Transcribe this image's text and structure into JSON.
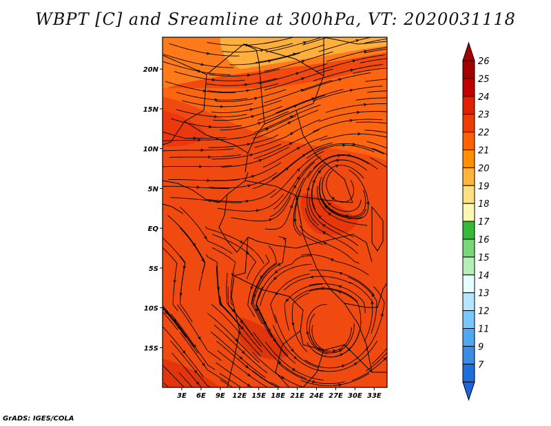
{
  "title": "WBPT [C] and Sreamline at 300hPa, VT: 2020031118",
  "footer": "GrADS: IGES/COLA",
  "map": {
    "lon_range": [
      0,
      35
    ],
    "lat_range": [
      -20,
      24
    ],
    "lat_ticks": [
      {
        "value": 20,
        "label": "20N"
      },
      {
        "value": 15,
        "label": "15N"
      },
      {
        "value": 10,
        "label": "10N"
      },
      {
        "value": 5,
        "label": "5N"
      },
      {
        "value": 0,
        "label": "EQ"
      },
      {
        "value": -5,
        "label": "5S"
      },
      {
        "value": -10,
        "label": "10S"
      },
      {
        "value": -15,
        "label": "15S"
      }
    ],
    "lon_ticks": [
      {
        "value": 3,
        "label": "3E"
      },
      {
        "value": 6,
        "label": "6E"
      },
      {
        "value": 9,
        "label": "9E"
      },
      {
        "value": 12,
        "label": "12E"
      },
      {
        "value": 15,
        "label": "15E"
      },
      {
        "value": 18,
        "label": "18E"
      },
      {
        "value": 21,
        "label": "21E"
      },
      {
        "value": 24,
        "label": "24E"
      },
      {
        "value": 27,
        "label": "27E"
      },
      {
        "value": 30,
        "label": "30E"
      },
      {
        "value": 33,
        "label": "33E"
      }
    ]
  },
  "colorbar": {
    "levels": [
      {
        "label": "26",
        "color": "#a50000"
      },
      {
        "label": "25",
        "color": "#c00000"
      },
      {
        "label": "24",
        "color": "#e02000"
      },
      {
        "label": "23",
        "color": "#f03c00"
      },
      {
        "label": "22",
        "color": "#ff6000"
      },
      {
        "label": "21",
        "color": "#ff9000"
      },
      {
        "label": "20",
        "color": "#ffb43c"
      },
      {
        "label": "19",
        "color": "#ffe080"
      },
      {
        "label": "18",
        "color": "#fff8b4"
      },
      {
        "label": "17",
        "color": "#38b838"
      },
      {
        "label": "16",
        "color": "#78d878"
      },
      {
        "label": "15",
        "color": "#b4f0b4"
      },
      {
        "label": "14",
        "color": "#e6ffff"
      },
      {
        "label": "13",
        "color": "#b4e6ff"
      },
      {
        "label": "12",
        "color": "#78c8ff"
      },
      {
        "label": "11",
        "color": "#50a8f0"
      },
      {
        "label": "9",
        "color": "#3c8ce6"
      },
      {
        "label": "7",
        "color": "#1e6edc"
      }
    ],
    "bottom_color": "#1e64dc"
  },
  "colors": {
    "background_field": "#f04a10",
    "warm_north": "#ffb03c",
    "warm_mid": "#ff9a20",
    "darker_patch": "#dc2c0a"
  }
}
